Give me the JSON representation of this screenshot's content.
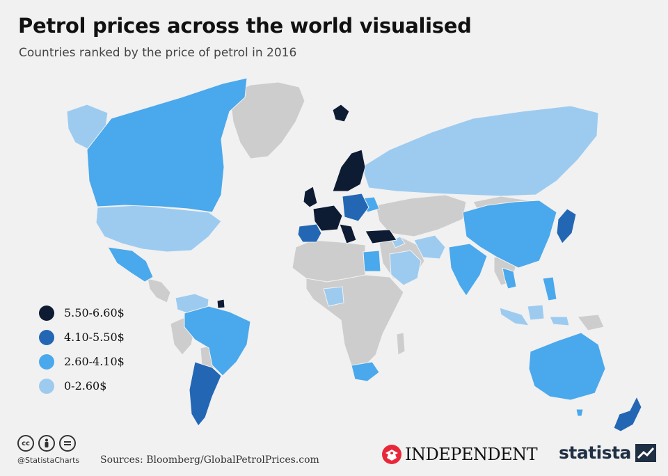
{
  "header": {
    "title": "Petrol prices across the world visualised",
    "subtitle": "Countries ranked by the price of petrol in 2016"
  },
  "colors": {
    "tier1": "#0d1b33",
    "tier2": "#2367b4",
    "tier3": "#4aa8ec",
    "tier4": "#9dcbf0",
    "no_data": "#cdcdcd",
    "background": "#f1f1f1"
  },
  "legend": {
    "items": [
      {
        "label": "5.50-6.60$",
        "color": "#0d1b33"
      },
      {
        "label": "4.10-5.50$",
        "color": "#2367b4"
      },
      {
        "label": "2.60-4.10$",
        "color": "#4aa8ec"
      },
      {
        "label": "0-2.60$",
        "color": "#9dcbf0"
      }
    ]
  },
  "footer": {
    "handle": "@StatistaCharts",
    "sources": "Sources: Bloomberg/GlobalPetrolPrices.com",
    "independent": "INDEPENDENT",
    "statista": "statista",
    "cc_icons": [
      "cc-icon",
      "by-icon",
      "nd-icon"
    ]
  }
}
